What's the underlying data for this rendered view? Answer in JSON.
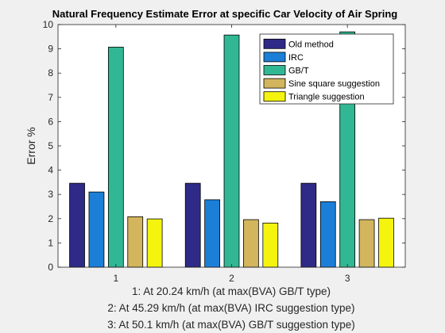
{
  "chart_data": {
    "type": "bar",
    "title": "Natural Frequency Estimate Error at specific Car Velocity of Air Spring",
    "ylabel": "Error %",
    "xlabel_lines": [
      "1: At 20.24 km/h (at max(BVA) GB/T type)",
      "2: At 45.29 km/h (at max(BVA) IRC suggestion type)",
      "3: At 50.1 km/h (at max(BVA) GB/T suggestion type)"
    ],
    "categories": [
      "1",
      "2",
      "3"
    ],
    "ylim": [
      0,
      10
    ],
    "yticks": [
      0,
      1,
      2,
      3,
      4,
      5,
      6,
      7,
      8,
      9,
      10
    ],
    "grid": false,
    "legend_position": "top-right",
    "series": [
      {
        "name": "Old method",
        "color": "#2e2a86",
        "values": [
          3.46,
          3.46,
          3.46
        ]
      },
      {
        "name": "IRC",
        "color": "#1b7fd8",
        "values": [
          3.1,
          2.78,
          2.7
        ]
      },
      {
        "name": "GB/T",
        "color": "#31b793",
        "values": [
          9.07,
          9.57,
          9.7
        ]
      },
      {
        "name": "Sine square suggestion",
        "color": "#d2b55c",
        "values": [
          2.08,
          1.96,
          1.96
        ]
      },
      {
        "name": "Triangle suggestion",
        "color": "#f4f40e",
        "values": [
          1.99,
          1.82,
          2.02
        ]
      }
    ]
  }
}
